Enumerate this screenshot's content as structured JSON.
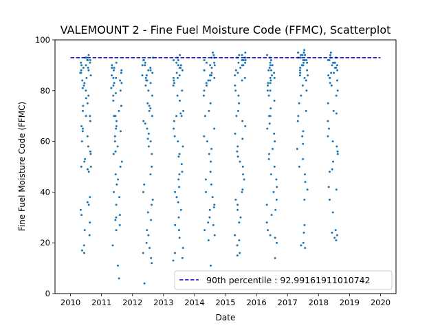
{
  "chart_data": {
    "type": "scatter",
    "title": "VALEMOUNT 2 - Fine Fuel Moisture Code (FFMC), Scatterplot",
    "xlabel": "Date",
    "ylabel": "Fine Fuel Moisture Code (FFMC)",
    "xlim": [
      2009.5,
      2020.5
    ],
    "ylim": [
      0,
      100
    ],
    "xticks": [
      2010,
      2011,
      2012,
      2013,
      2014,
      2015,
      2016,
      2017,
      2018,
      2019,
      2020
    ],
    "yticks": [
      0,
      20,
      40,
      60,
      80,
      100
    ],
    "grid": false,
    "legend_position": "lower-right",
    "colors": {
      "points": "#1f77b4",
      "percentile_line": "#0000cc"
    },
    "series": [
      {
        "name": "FFMC",
        "seasons": [
          2010,
          2011,
          2012,
          2013,
          2014,
          2015,
          2016,
          2017,
          2018
        ],
        "season_start": 0.3,
        "season_end": 0.66,
        "points": [
          [
            2010,
            [
              90,
              92,
              93,
              88,
              87,
              91,
              89,
              94,
              86,
              90,
              92,
              85,
              83,
              88,
              91,
              80,
              78,
              82,
              75,
              72,
              70,
              68,
              66,
              64,
              62,
              60,
              58,
              56,
              55,
              53,
              52,
              50,
              49,
              48,
              50,
              38,
              36,
              35,
              33,
              31,
              28,
              25,
              23,
              19,
              17,
              16,
              65,
              70,
              74,
              77,
              81,
              84,
              87,
              89,
              92,
              93
            ]
          ],
          [
            2011,
            [
              90,
              91,
              89,
              88,
              87,
              86,
              85,
              84,
              83,
              82,
              81,
              80,
              79,
              78,
              76,
              74,
              72,
              70,
              68,
              66,
              64,
              62,
              60,
              58,
              56,
              55,
              52,
              50,
              47,
              45,
              43,
              40,
              38,
              35,
              31,
              30,
              29,
              27,
              25,
              19,
              11,
              6,
              88,
              89,
              85,
              83,
              70,
              65
            ]
          ],
          [
            2012,
            [
              93,
              92,
              91,
              90,
              89,
              88,
              87,
              86,
              85,
              84,
              83,
              82,
              80,
              78,
              75,
              74,
              73,
              70,
              67,
              65,
              63,
              61,
              60,
              58,
              55,
              50,
              47,
              43,
              40,
              37,
              35,
              32,
              29,
              25,
              23,
              20,
              18,
              16,
              14,
              12,
              4,
              90,
              92,
              88,
              86,
              84,
              72,
              68
            ]
          ],
          [
            2013,
            [
              94,
              93,
              92,
              91,
              90,
              89,
              88,
              87,
              86,
              85,
              84,
              82,
              80,
              78,
              76,
              72,
              71,
              70,
              68,
              65,
              62,
              60,
              58,
              55,
              54,
              51,
              48,
              47,
              45,
              42,
              40,
              38,
              36,
              33,
              30,
              27,
              25,
              22,
              18,
              16,
              14,
              13,
              92,
              90,
              89,
              85,
              83,
              70
            ]
          ],
          [
            2014,
            [
              95,
              94,
              93,
              92,
              91,
              90,
              89,
              88,
              87,
              86,
              85,
              84,
              83,
              82,
              80,
              78,
              75,
              70,
              65,
              62,
              60,
              57,
              55,
              52,
              48,
              45,
              43,
              40,
              38,
              35,
              34,
              33,
              30,
              28,
              27,
              25,
              23,
              21,
              11,
              93,
              91,
              90,
              88,
              86,
              84,
              72
            ]
          ],
          [
            2015,
            [
              95,
              94,
              94,
              93,
              93,
              92,
              92,
              91,
              91,
              90,
              89,
              88,
              87,
              86,
              85,
              84,
              82,
              80,
              78,
              75,
              72,
              70,
              68,
              66,
              63,
              61,
              58,
              56,
              54,
              52,
              50,
              47,
              45,
              41,
              40,
              37,
              35,
              33,
              30,
              28,
              23,
              21,
              19,
              16,
              15,
              93,
              92,
              90
            ]
          ],
          [
            2016,
            [
              94,
              93,
              92,
              91,
              90,
              89,
              88,
              87,
              86,
              85,
              84,
              83,
              82,
              80,
              78,
              76,
              73,
              70,
              67,
              63,
              60,
              57,
              55,
              53,
              50,
              47,
              45,
              42,
              40,
              37,
              35,
              33,
              31,
              28,
              25,
              23,
              22,
              20,
              14,
              90,
              88,
              85,
              83,
              80,
              70,
              65
            ]
          ],
          [
            2017,
            [
              96,
              95,
              95,
              94,
              94,
              93,
              93,
              92,
              92,
              91,
              91,
              90,
              90,
              89,
              88,
              87,
              86,
              85,
              84,
              82,
              80,
              78,
              75,
              72,
              70,
              68,
              64,
              62,
              59,
              57,
              53,
              50,
              47,
              44,
              41,
              37,
              27,
              24,
              20,
              19,
              18,
              92,
              94,
              90,
              88,
              86
            ]
          ],
          [
            2018,
            [
              95,
              94,
              93,
              92,
              92,
              91,
              91,
              90,
              90,
              89,
              88,
              87,
              86,
              85,
              84,
              83,
              82,
              80,
              78,
              75,
              72,
              71,
              68,
              65,
              62,
              60,
              58,
              56,
              55,
              52,
              49,
              48,
              42,
              41,
              37,
              32,
              25,
              24,
              23,
              22,
              21,
              93,
              91,
              89,
              87,
              85
            ]
          ]
        ]
      }
    ],
    "reference_line": {
      "label": "90th percentile : 92.99161911010742",
      "value": 92.99161911010742,
      "xrange": [
        2010,
        2020
      ],
      "style": "dashed"
    }
  }
}
